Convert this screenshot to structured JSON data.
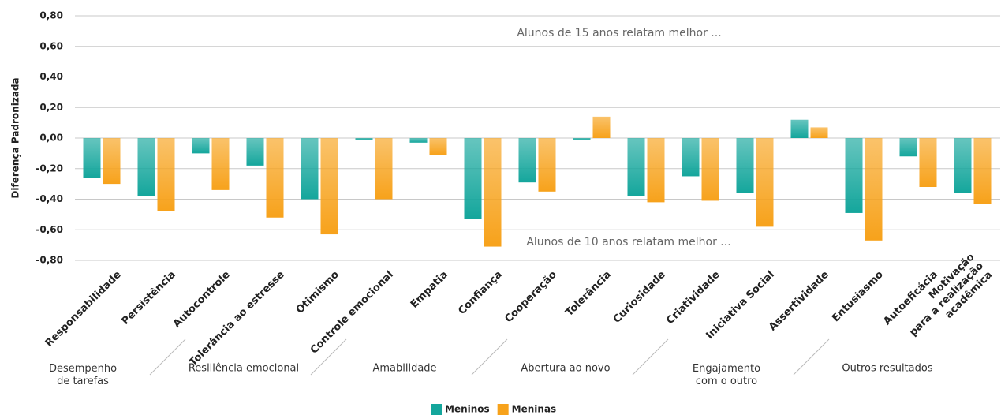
{
  "chart_data": {
    "type": "bar",
    "y_label": "Diferença Padronizada",
    "annotations": [
      "Alunos de 15 anos relatam melhor ...",
      "Alunos de 10 anos relatam melhor ..."
    ],
    "categories": [
      "Responsabilidade",
      "Persistência",
      "Autocontrole",
      "Tolerância ao estresse",
      "Otimismo",
      "Controle emocional",
      "Empatia",
      "Confiança",
      "Cooperação",
      "Tolerância",
      "Curiosidade",
      "Criatividade",
      "Iniciativa Social",
      "Assertividade",
      "Entusiasmo",
      "Autoeficácia",
      "Motivação\npara a realização\nacadêmica"
    ],
    "groups": [
      "Desempenho\nde tarefas",
      "Resiliência emocional",
      "Amabilidade",
      "Abertura ao novo",
      "Engajamento\ncom o outro",
      "Outros resultados"
    ],
    "series": [
      {
        "name": "Meninos",
        "color": "#14a69c",
        "values": [
          -0.26,
          -0.38,
          -0.1,
          -0.18,
          -0.4,
          -0.01,
          -0.03,
          -0.53,
          -0.29,
          -0.01,
          -0.38,
          -0.25,
          -0.36,
          0.12,
          -0.49,
          -0.12,
          -0.36
        ]
      },
      {
        "name": "Meninas",
        "color": "#f7a21b",
        "values": [
          -0.3,
          -0.48,
          -0.34,
          -0.52,
          -0.63,
          -0.4,
          -0.11,
          -0.71,
          -0.35,
          0.14,
          -0.42,
          -0.41,
          -0.58,
          0.07,
          -0.67,
          -0.32,
          -0.43
        ]
      }
    ],
    "ylim": [
      -0.8,
      0.8
    ],
    "yticks": [
      {
        "value": -0.8,
        "label": "-0,80"
      },
      {
        "value": -0.6,
        "label": "-0,60"
      },
      {
        "value": -0.4,
        "label": "-0,40"
      },
      {
        "value": -0.2,
        "label": "-0,20"
      },
      {
        "value": 0,
        "label": "0,00"
      },
      {
        "value": 0.2,
        "label": "0,20"
      },
      {
        "value": 0.4,
        "label": "0,40"
      },
      {
        "value": 0.6,
        "label": "0,60"
      },
      {
        "value": 0.8,
        "label": "0,80"
      }
    ],
    "grid": true,
    "legend": "bottom"
  }
}
